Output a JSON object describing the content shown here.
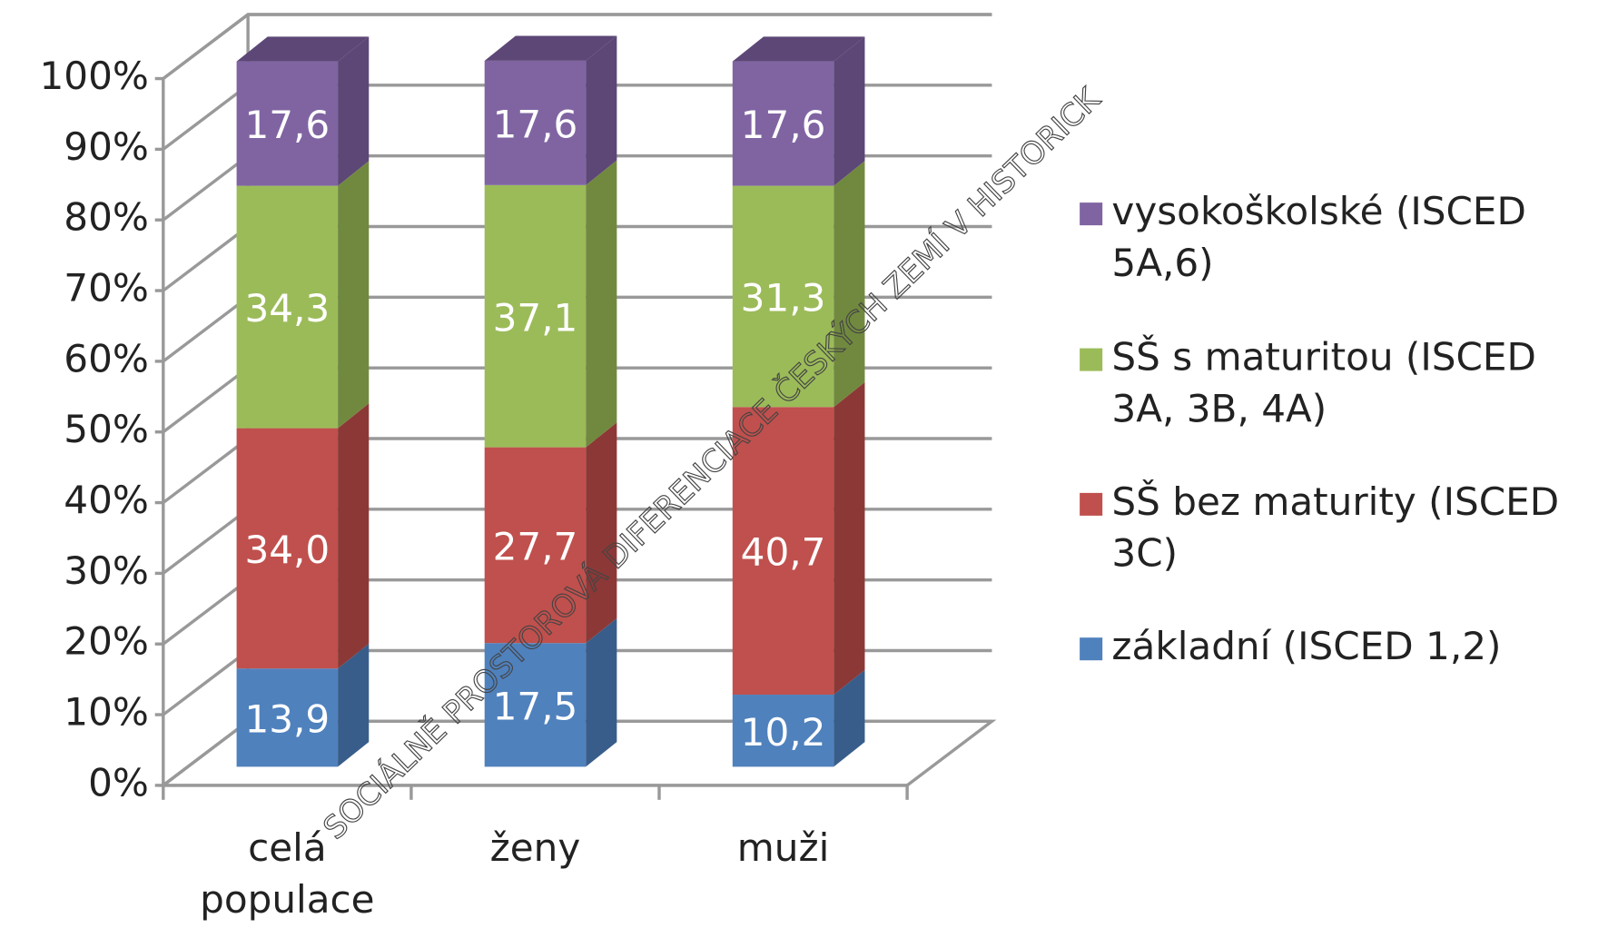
{
  "chart_data": {
    "type": "bar3d-stacked",
    "categories": [
      "celá populace",
      "ženy",
      "muži"
    ],
    "series": [
      {
        "name": "základní (ISCED 1,2)",
        "color": "#4f81bd",
        "side": "#385d8a",
        "values": [
          13.9,
          17.5,
          10.2
        ],
        "value_labels": [
          "13,9",
          "17,5",
          "10,2"
        ]
      },
      {
        "name": "SŠ bez maturity (ISCED 3C)",
        "color": "#c0504d",
        "side": "#8c3836",
        "values": [
          34.0,
          27.7,
          40.7
        ],
        "value_labels": [
          "34,0",
          "27,7",
          "40,7"
        ]
      },
      {
        "name": "SŠ s maturitou (ISCED 3A, 3B, 4A)",
        "color": "#9bbb59",
        "side": "#71893f",
        "values": [
          34.3,
          37.1,
          31.3
        ],
        "value_labels": [
          "34,3",
          "37,1",
          "31,3"
        ]
      },
      {
        "name": "vysokoškolské (ISCED 5A,6)",
        "color": "#8064a2",
        "side": "#5c4776",
        "values": [
          17.6,
          17.6,
          17.6
        ],
        "value_labels": [
          "17,6",
          "17,6",
          "17,6"
        ]
      }
    ],
    "ylim": [
      0,
      100
    ],
    "yticks": [
      {
        "value": 0,
        "label": "0%"
      },
      {
        "value": 10,
        "label": "10%"
      },
      {
        "value": 20,
        "label": "20%"
      },
      {
        "value": 30,
        "label": "30%"
      },
      {
        "value": 40,
        "label": "40%"
      },
      {
        "value": 50,
        "label": "50%"
      },
      {
        "value": 60,
        "label": "60%"
      },
      {
        "value": 70,
        "label": "70%"
      },
      {
        "value": 80,
        "label": "80%"
      },
      {
        "value": 90,
        "label": "90%"
      },
      {
        "value": 100,
        "label": "100%"
      }
    ],
    "grid": true,
    "legend": "right",
    "watermark": "SOCIÁLNĚ PROSTOROVÁ DIFERENCIACE ČESKÝCH ZEMÍ V HISTORICK"
  }
}
